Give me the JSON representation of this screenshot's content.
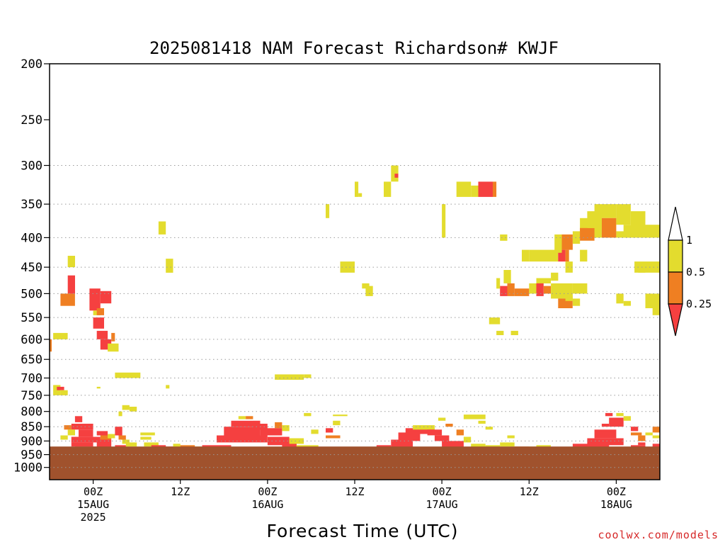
{
  "chart_data": {
    "type": "heatmap",
    "title": "2025081418 NAM Forecast Richardson# KWJF",
    "xlabel": "Forecast Time (UTC)",
    "ylabel": "",
    "y_scale": "log-pressure (hPa, inverted)",
    "ylim": [
      1050,
      200
    ],
    "y_ticks": [
      200,
      250,
      300,
      350,
      400,
      450,
      500,
      550,
      600,
      650,
      700,
      750,
      800,
      850,
      900,
      950,
      1000
    ],
    "y_tick_labels": [
      "200",
      "250",
      "300",
      "350",
      "400",
      "450",
      "500",
      "550",
      "600",
      "650",
      "700",
      "750",
      "800",
      "850",
      "900",
      "950",
      "1000"
    ],
    "dotted_grid_at": [
      300,
      350,
      400,
      450,
      500,
      550,
      600,
      650,
      700,
      750,
      800,
      850,
      900,
      950,
      1000
    ],
    "xlim_hours": [
      -6,
      78
    ],
    "x_ticks": [
      {
        "hour": 0,
        "labels": [
          "00Z",
          "15AUG",
          "2025"
        ]
      },
      {
        "hour": 12,
        "labels": [
          "12Z"
        ]
      },
      {
        "hour": 24,
        "labels": [
          "00Z",
          "16AUG"
        ]
      },
      {
        "hour": 36,
        "labels": [
          "12Z"
        ]
      },
      {
        "hour": 48,
        "labels": [
          "00Z",
          "17AUG"
        ]
      },
      {
        "hour": 60,
        "labels": [
          "12Z"
        ]
      },
      {
        "hour": 72,
        "labels": [
          "00Z",
          "18AUG"
        ]
      }
    ],
    "colorbar": {
      "bins": [
        {
          "range": "0.5 to 1",
          "color": "#e3dc2e"
        },
        {
          "range": "0.25 to 0.5",
          "color": "#ef7f22"
        },
        {
          "range": "< 0.25",
          "color": "#f54040"
        }
      ],
      "labels": [
        "1",
        "0.5",
        "0.25"
      ],
      "above_color": "#ffffff"
    },
    "ground": {
      "color": "#a0522d",
      "surface_pressure_hpa": 920
    },
    "cells_note": "each cell: [forecast hour start, forecast hour end, pressure top hPa, pressure bottom hPa, class] ; class 1 = Ri 0.5-1, 2 = Ri 0.25-0.5, 3 = Ri < 0.25",
    "cells": [
      [
        -6,
        -5.7,
        600,
        630,
        2
      ],
      [
        -5.5,
        -3.5,
        585,
        600,
        1
      ],
      [
        -5.5,
        -4.5,
        720,
        750,
        1
      ],
      [
        -5,
        -4,
        725,
        735,
        3
      ],
      [
        -4.5,
        -3.5,
        735,
        750,
        1
      ],
      [
        -4.5,
        -2.5,
        500,
        525,
        2
      ],
      [
        -3.5,
        -2.5,
        465,
        500,
        3
      ],
      [
        -3.5,
        -2.5,
        430,
        450,
        1
      ],
      [
        -2.5,
        1.5,
        920,
        935,
        3
      ],
      [
        -3,
        0,
        905,
        920,
        3
      ],
      [
        -3,
        1,
        885,
        905,
        3
      ],
      [
        -2,
        0,
        860,
        885,
        3
      ],
      [
        -3,
        0,
        840,
        860,
        3
      ],
      [
        -2.5,
        -1.5,
        815,
        835,
        3
      ],
      [
        -3.5,
        -2.5,
        860,
        880,
        1
      ],
      [
        -4.5,
        -3.5,
        880,
        895,
        1
      ],
      [
        -4,
        -3,
        845,
        860,
        2
      ],
      [
        -0.5,
        1,
        490,
        535,
        3
      ],
      [
        0,
        1,
        535,
        545,
        1
      ],
      [
        0,
        1.5,
        550,
        575,
        3
      ],
      [
        0.5,
        1.5,
        530,
        545,
        2
      ],
      [
        1,
        2.5,
        495,
        520,
        3
      ],
      [
        0.5,
        2,
        580,
        600,
        3
      ],
      [
        1,
        2.5,
        600,
        625,
        3
      ],
      [
        2,
        3.5,
        610,
        630,
        1
      ],
      [
        2.5,
        3,
        585,
        605,
        2
      ],
      [
        0.5,
        2,
        865,
        880,
        3
      ],
      [
        1,
        2.5,
        880,
        895,
        2
      ],
      [
        2,
        3,
        875,
        890,
        1
      ],
      [
        0.5,
        2.5,
        895,
        930,
        3
      ],
      [
        3,
        4,
        850,
        880,
        3
      ],
      [
        3.5,
        4.5,
        880,
        895,
        2
      ],
      [
        4,
        5,
        895,
        910,
        1
      ],
      [
        4.5,
        6,
        905,
        920,
        1
      ],
      [
        3,
        4.5,
        915,
        930,
        3
      ],
      [
        4,
        5,
        780,
        795,
        1
      ],
      [
        5,
        6,
        785,
        800,
        1
      ],
      [
        3.5,
        4,
        800,
        815,
        1
      ],
      [
        6.5,
        8.5,
        870,
        880,
        1
      ],
      [
        6.5,
        8,
        885,
        895,
        1
      ],
      [
        7,
        9,
        905,
        920,
        1
      ],
      [
        8,
        10,
        915,
        925,
        3
      ],
      [
        9,
        11,
        920,
        930,
        3
      ],
      [
        3,
        6.5,
        685,
        700,
        1
      ],
      [
        0.5,
        1,
        725,
        730,
        1
      ],
      [
        9,
        10,
        375,
        395,
        1
      ],
      [
        10,
        11,
        435,
        460,
        1
      ],
      [
        10,
        10.5,
        720,
        730,
        1
      ],
      [
        11,
        12,
        910,
        925,
        1
      ],
      [
        12,
        14,
        915,
        925,
        2
      ],
      [
        14,
        16,
        920,
        930,
        1
      ],
      [
        15,
        19,
        915,
        935,
        3
      ],
      [
        17,
        24,
        880,
        905,
        3
      ],
      [
        18,
        23,
        850,
        880,
        3
      ],
      [
        19,
        23,
        830,
        850,
        3
      ],
      [
        20,
        21,
        815,
        825,
        1
      ],
      [
        21,
        22,
        815,
        825,
        2
      ],
      [
        22,
        24,
        840,
        860,
        3
      ],
      [
        23,
        26,
        855,
        880,
        3
      ],
      [
        24,
        27,
        885,
        915,
        3
      ],
      [
        26,
        28,
        905,
        930,
        3
      ],
      [
        25,
        26,
        835,
        855,
        2
      ],
      [
        26,
        27,
        845,
        865,
        1
      ],
      [
        27,
        29,
        890,
        910,
        1
      ],
      [
        28,
        31,
        915,
        935,
        1
      ],
      [
        25,
        29,
        690,
        705,
        1
      ],
      [
        29,
        30,
        690,
        700,
        1
      ],
      [
        29,
        30,
        805,
        815,
        1
      ],
      [
        30,
        31,
        860,
        875,
        1
      ],
      [
        32,
        33,
        855,
        870,
        3
      ],
      [
        33,
        34,
        830,
        845,
        1
      ],
      [
        32,
        34,
        880,
        890,
        2
      ],
      [
        33,
        35,
        810,
        815,
        1
      ],
      [
        34,
        36,
        930,
        935,
        1
      ],
      [
        36,
        39,
        925,
        935,
        1
      ],
      [
        32,
        32.5,
        350,
        370,
        1
      ],
      [
        34,
        36,
        440,
        460,
        1
      ],
      [
        36,
        36.5,
        320,
        340,
        1
      ],
      [
        36.5,
        37,
        335,
        340,
        1
      ],
      [
        37,
        38,
        480,
        490,
        1
      ],
      [
        37.5,
        38.5,
        485,
        505,
        1
      ],
      [
        40,
        41,
        320,
        340,
        1
      ],
      [
        41,
        42,
        300,
        320,
        1
      ],
      [
        41.5,
        42,
        310,
        315,
        3
      ],
      [
        39,
        41,
        915,
        930,
        3
      ],
      [
        41,
        44,
        895,
        925,
        3
      ],
      [
        42,
        45,
        870,
        900,
        3
      ],
      [
        43,
        47,
        855,
        875,
        3
      ],
      [
        44,
        47,
        845,
        860,
        1
      ],
      [
        46,
        48,
        860,
        880,
        3
      ],
      [
        47,
        49,
        880,
        900,
        3
      ],
      [
        48,
        51,
        900,
        925,
        3
      ],
      [
        47.5,
        48.5,
        820,
        830,
        1
      ],
      [
        48.5,
        49.5,
        840,
        850,
        2
      ],
      [
        50,
        51,
        860,
        880,
        2
      ],
      [
        51,
        52,
        885,
        905,
        1
      ],
      [
        52,
        54,
        910,
        925,
        1
      ],
      [
        51,
        54,
        810,
        825,
        1
      ],
      [
        53,
        54,
        830,
        840,
        1
      ],
      [
        54,
        55,
        850,
        860,
        1
      ],
      [
        48,
        48.5,
        350,
        400,
        1
      ],
      [
        50,
        52,
        320,
        340,
        1
      ],
      [
        52,
        53,
        325,
        340,
        1
      ],
      [
        54,
        56,
        915,
        930,
        1
      ],
      [
        56,
        58,
        905,
        920,
        1
      ],
      [
        58,
        60,
        920,
        930,
        2
      ],
      [
        60,
        62,
        920,
        930,
        1
      ],
      [
        61,
        63,
        915,
        925,
        1
      ],
      [
        57,
        58,
        880,
        890,
        1
      ],
      [
        54.5,
        56,
        550,
        565,
        1
      ],
      [
        55.5,
        56.5,
        580,
        590,
        1
      ],
      [
        57.5,
        58.5,
        580,
        590,
        1
      ],
      [
        53,
        55,
        320,
        340,
        3
      ],
      [
        55,
        55.5,
        320,
        340,
        2
      ],
      [
        56,
        57,
        395,
        405,
        1
      ],
      [
        56,
        57,
        485,
        505,
        3
      ],
      [
        55.5,
        56,
        470,
        490,
        1
      ],
      [
        56.5,
        57.5,
        455,
        480,
        1
      ],
      [
        57,
        58,
        480,
        505,
        2
      ],
      [
        58,
        60,
        490,
        505,
        2
      ],
      [
        59,
        60,
        420,
        440,
        1
      ],
      [
        60,
        64,
        420,
        440,
        1
      ],
      [
        61,
        63,
        470,
        480,
        1
      ],
      [
        60,
        61,
        480,
        500,
        1
      ],
      [
        61,
        62,
        480,
        505,
        3
      ],
      [
        62,
        63,
        485,
        500,
        2
      ],
      [
        63,
        66,
        480,
        510,
        1
      ],
      [
        64,
        66,
        510,
        530,
        2
      ],
      [
        66,
        67,
        510,
        525,
        1
      ],
      [
        65,
        66,
        505,
        515,
        1
      ],
      [
        66,
        68,
        480,
        500,
        1
      ],
      [
        67,
        68,
        420,
        440,
        1
      ],
      [
        65,
        66,
        440,
        460,
        1
      ],
      [
        63,
        64,
        460,
        475,
        1
      ],
      [
        64,
        65,
        420,
        440,
        3
      ],
      [
        65,
        65.5,
        420,
        440,
        2
      ],
      [
        63.5,
        64.5,
        395,
        425,
        1
      ],
      [
        64.5,
        66,
        395,
        420,
        2
      ],
      [
        66,
        67,
        390,
        410,
        1
      ],
      [
        67,
        70,
        370,
        400,
        1
      ],
      [
        69,
        72,
        350,
        370,
        1
      ],
      [
        70,
        72,
        370,
        400,
        2
      ],
      [
        72,
        74,
        350,
        380,
        1
      ],
      [
        72,
        74,
        390,
        400,
        1
      ],
      [
        73,
        76,
        380,
        400,
        1
      ],
      [
        67,
        69,
        385,
        405,
        2
      ],
      [
        68,
        70,
        360,
        385,
        1
      ],
      [
        74,
        76,
        360,
        390,
        1
      ],
      [
        74.5,
        78,
        440,
        460,
        1
      ],
      [
        75,
        76,
        445,
        460,
        1
      ],
      [
        76,
        78,
        380,
        400,
        1
      ],
      [
        76,
        78,
        500,
        530,
        1
      ],
      [
        77,
        78,
        520,
        545,
        1
      ],
      [
        72,
        73,
        500,
        520,
        1
      ],
      [
        73,
        74,
        515,
        525,
        1
      ],
      [
        65,
        67,
        930,
        935,
        3
      ],
      [
        66,
        71,
        910,
        930,
        3
      ],
      [
        68,
        73,
        890,
        915,
        3
      ],
      [
        69,
        72,
        860,
        890,
        3
      ],
      [
        70,
        71,
        840,
        850,
        3
      ],
      [
        71,
        73,
        820,
        850,
        3
      ],
      [
        70.5,
        71.5,
        805,
        815,
        3
      ],
      [
        72,
        73,
        805,
        815,
        1
      ],
      [
        73,
        74,
        815,
        830,
        1
      ],
      [
        74,
        75,
        850,
        865,
        3
      ],
      [
        74,
        75.5,
        870,
        880,
        2
      ],
      [
        75,
        76,
        880,
        900,
        2
      ],
      [
        75,
        76,
        905,
        915,
        3
      ],
      [
        74,
        76,
        915,
        930,
        3
      ],
      [
        76,
        77,
        870,
        880,
        1
      ],
      [
        77,
        78,
        850,
        870,
        2
      ],
      [
        77,
        78,
        880,
        890,
        1
      ],
      [
        75.5,
        77,
        925,
        935,
        1
      ],
      [
        77,
        78,
        910,
        925,
        3
      ],
      [
        77,
        78,
        930,
        935,
        1
      ]
    ]
  },
  "credit": "coolwx.com/models"
}
